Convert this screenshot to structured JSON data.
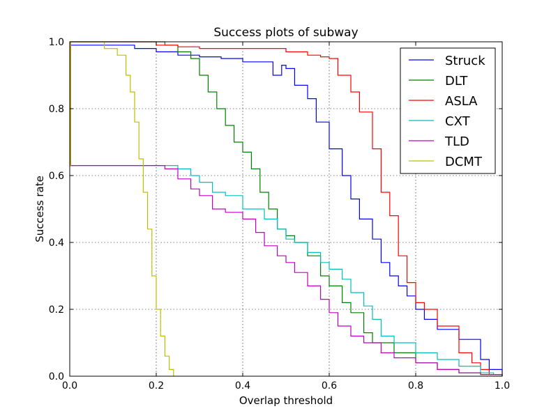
{
  "chart_data": {
    "type": "line",
    "title": "Success plots of subway",
    "xlabel": "Overlap threshold",
    "ylabel": "Success rate",
    "xlim": [
      0,
      1
    ],
    "ylim": [
      0,
      1
    ],
    "xticks": [
      "0.0",
      "0.2",
      "0.4",
      "0.6",
      "0.8",
      "1.0"
    ],
    "yticks": [
      "0.0",
      "0.2",
      "0.4",
      "0.6",
      "0.8",
      "1.0"
    ],
    "grid": true,
    "legend_position": "top-right",
    "series": [
      {
        "name": "Struck",
        "color": "#0000ff",
        "x": [
          0,
          0.002,
          0.01,
          0.1,
          0.15,
          0.2,
          0.25,
          0.3,
          0.35,
          0.4,
          0.45,
          0.47,
          0.49,
          0.5,
          0.52,
          0.55,
          0.57,
          0.6,
          0.63,
          0.65,
          0.67,
          0.7,
          0.72,
          0.74,
          0.76,
          0.78,
          0.8,
          0.82,
          0.85,
          0.9,
          0.95,
          0.97,
          1.0
        ],
        "y": [
          0.63,
          0.99,
          0.99,
          0.99,
          0.98,
          0.97,
          0.96,
          0.955,
          0.95,
          0.94,
          0.94,
          0.9,
          0.93,
          0.92,
          0.87,
          0.83,
          0.76,
          0.68,
          0.6,
          0.53,
          0.47,
          0.41,
          0.34,
          0.3,
          0.27,
          0.24,
          0.2,
          0.17,
          0.14,
          0.11,
          0.05,
          0.02,
          0.005
        ]
      },
      {
        "name": "DLT",
        "color": "#008000",
        "x": [
          0,
          0.002,
          0.1,
          0.2,
          0.22,
          0.25,
          0.28,
          0.3,
          0.32,
          0.34,
          0.36,
          0.38,
          0.4,
          0.42,
          0.44,
          0.46,
          0.48,
          0.5,
          0.52,
          0.55,
          0.58,
          0.6,
          0.63,
          0.65,
          0.68,
          0.7,
          0.75,
          0.8,
          0.85,
          0.9,
          0.95,
          1.0
        ],
        "y": [
          0.63,
          1.0,
          1.0,
          1.0,
          0.99,
          0.97,
          0.95,
          0.9,
          0.85,
          0.8,
          0.75,
          0.7,
          0.67,
          0.62,
          0.55,
          0.5,
          0.44,
          0.42,
          0.4,
          0.36,
          0.3,
          0.27,
          0.22,
          0.19,
          0.13,
          0.1,
          0.07,
          0.04,
          0.02,
          0.01,
          0.005,
          0.0
        ]
      },
      {
        "name": "ASLA",
        "color": "#ff0000",
        "x": [
          0,
          0.002,
          0.1,
          0.2,
          0.25,
          0.3,
          0.4,
          0.5,
          0.55,
          0.58,
          0.6,
          0.62,
          0.65,
          0.67,
          0.7,
          0.72,
          0.74,
          0.76,
          0.78,
          0.8,
          0.82,
          0.85,
          0.9,
          0.93,
          0.95,
          0.97,
          1.0
        ],
        "y": [
          0.63,
          1.0,
          1.0,
          0.99,
          0.985,
          0.98,
          0.98,
          0.97,
          0.96,
          0.955,
          0.95,
          0.9,
          0.85,
          0.79,
          0.68,
          0.55,
          0.48,
          0.36,
          0.28,
          0.22,
          0.2,
          0.15,
          0.07,
          0.04,
          0.02,
          0.005,
          0.0
        ]
      },
      {
        "name": "CXT",
        "color": "#00bfbf",
        "x": [
          0,
          0.002,
          0.1,
          0.2,
          0.22,
          0.25,
          0.28,
          0.3,
          0.33,
          0.36,
          0.4,
          0.45,
          0.48,
          0.5,
          0.52,
          0.55,
          0.58,
          0.6,
          0.63,
          0.65,
          0.68,
          0.7,
          0.72,
          0.75,
          0.8,
          0.85,
          0.9,
          0.95,
          0.98,
          1.0
        ],
        "y": [
          0.63,
          0.63,
          0.63,
          0.63,
          0.63,
          0.62,
          0.6,
          0.58,
          0.55,
          0.54,
          0.5,
          0.47,
          0.44,
          0.41,
          0.4,
          0.37,
          0.34,
          0.32,
          0.29,
          0.25,
          0.21,
          0.17,
          0.12,
          0.1,
          0.07,
          0.05,
          0.03,
          0.01,
          0.005,
          0.0
        ]
      },
      {
        "name": "TLD",
        "color": "#bf00bf",
        "x": [
          0,
          0.002,
          0.1,
          0.2,
          0.22,
          0.25,
          0.28,
          0.3,
          0.33,
          0.36,
          0.4,
          0.43,
          0.45,
          0.48,
          0.5,
          0.52,
          0.55,
          0.58,
          0.6,
          0.62,
          0.65,
          0.68,
          0.7,
          0.72,
          0.75,
          0.8,
          0.85,
          0.9,
          0.95,
          1.0
        ],
        "y": [
          0.63,
          0.63,
          0.63,
          0.63,
          0.62,
          0.59,
          0.56,
          0.54,
          0.5,
          0.49,
          0.47,
          0.43,
          0.39,
          0.36,
          0.34,
          0.31,
          0.27,
          0.23,
          0.19,
          0.15,
          0.12,
          0.1,
          0.1,
          0.07,
          0.055,
          0.04,
          0.02,
          0.01,
          0.005,
          0.0
        ]
      },
      {
        "name": "DCMT",
        "color": "#bfbf00",
        "x": [
          0,
          0.002,
          0.05,
          0.08,
          0.11,
          0.13,
          0.14,
          0.15,
          0.16,
          0.17,
          0.18,
          0.19,
          0.2,
          0.21,
          0.22,
          0.23,
          0.24
        ],
        "y": [
          0.63,
          1.0,
          1.0,
          0.98,
          0.96,
          0.9,
          0.85,
          0.76,
          0.65,
          0.55,
          0.44,
          0.3,
          0.2,
          0.12,
          0.06,
          0.02,
          0.0
        ]
      }
    ]
  }
}
